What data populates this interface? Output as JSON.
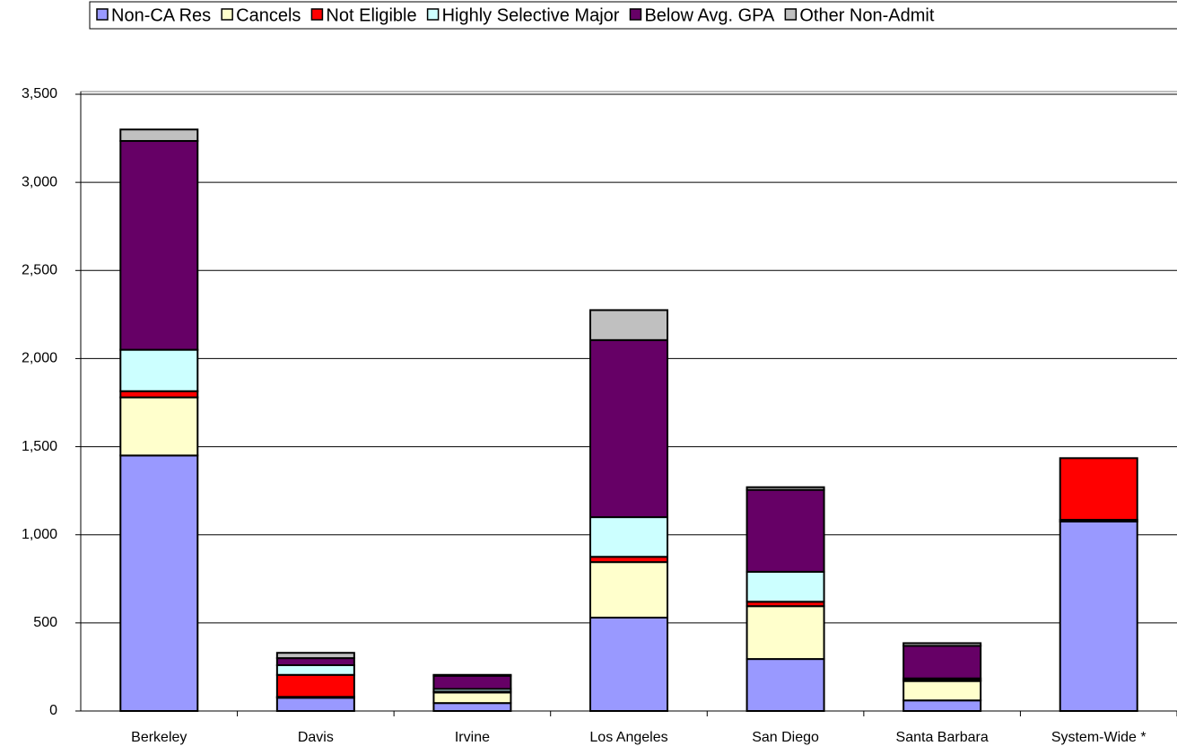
{
  "chart_data": {
    "type": "stacked_bar",
    "categories": [
      "Berkeley",
      "Davis",
      "Irvine",
      "Los Angeles",
      "San Diego",
      "Santa Barbara",
      "System-Wide *"
    ],
    "series": [
      {
        "name": "Non-CA Res",
        "color": "#9999ff",
        "values": [
          1450,
          75,
          45,
          530,
          295,
          60,
          1075
        ]
      },
      {
        "name": "Cancels",
        "color": "#ffffcc",
        "values": [
          330,
          5,
          60,
          315,
          300,
          110,
          10
        ]
      },
      {
        "name": "Not Eligible",
        "color": "#ff0000",
        "values": [
          35,
          125,
          5,
          30,
          25,
          5,
          350
        ]
      },
      {
        "name": "Highly Selective Major",
        "color": "#ccffff",
        "values": [
          235,
          55,
          15,
          225,
          170,
          10,
          0
        ]
      },
      {
        "name": "Below Avg. GPA",
        "color": "#660066",
        "values": [
          1185,
          40,
          75,
          1005,
          465,
          185,
          0
        ]
      },
      {
        "name": "Other Non-Admit",
        "color": "#c0c0c0",
        "values": [
          65,
          30,
          5,
          170,
          15,
          15,
          0
        ]
      }
    ],
    "ylim": [
      0,
      3500
    ],
    "yticks": [
      0,
      500,
      {
        "value": 1000,
        "label": "1,000"
      },
      {
        "value": 1500,
        "label": "1,500"
      },
      {
        "value": 2000,
        "label": "2,000"
      },
      {
        "value": 2500,
        "label": "2,500"
      },
      {
        "value": 3000,
        "label": "3,000"
      },
      {
        "value": 3500,
        "label": "3,500"
      }
    ],
    "grid": true,
    "legend": "top"
  }
}
